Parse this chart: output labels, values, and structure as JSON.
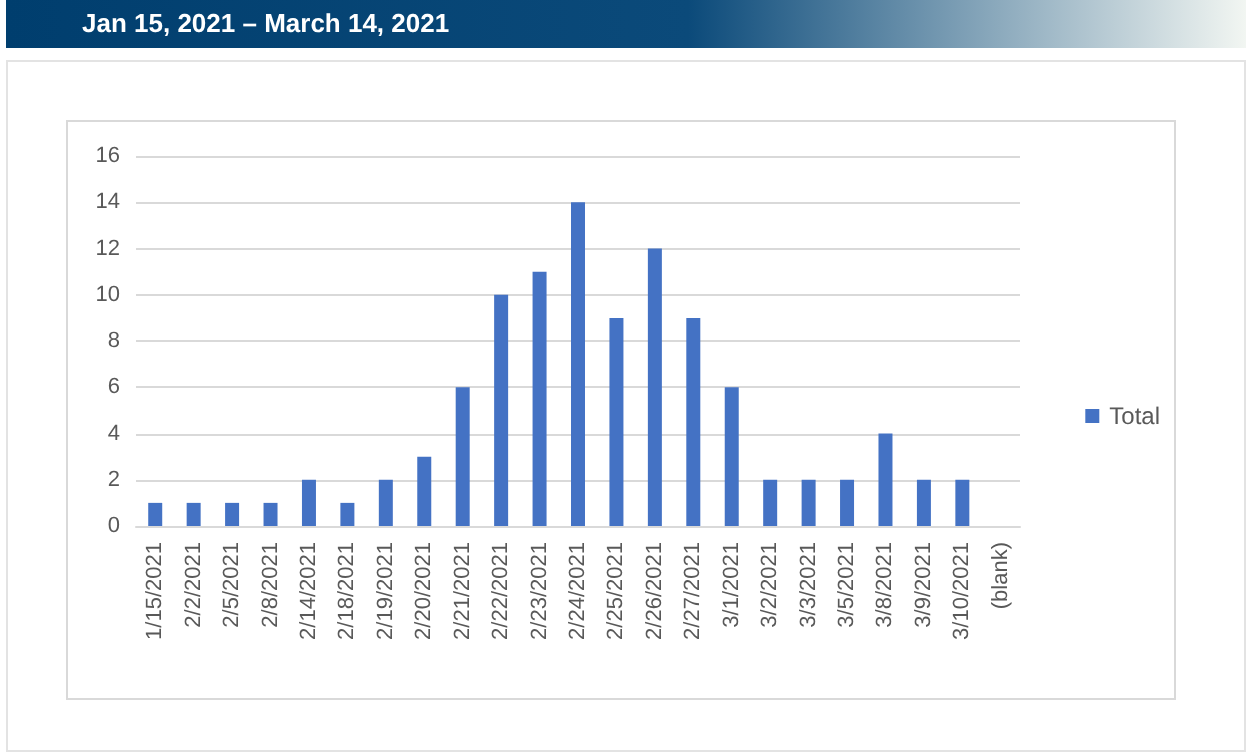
{
  "chart_data": {
    "type": "bar",
    "title": "Jan 15, 2021 – March 14, 2021",
    "categories": [
      "1/15/2021",
      "2/2/2021",
      "2/5/2021",
      "2/8/2021",
      "2/14/2021",
      "2/18/2021",
      "2/19/2021",
      "2/20/2021",
      "2/21/2021",
      "2/22/2021",
      "2/23/2021",
      "2/24/2021",
      "2/25/2021",
      "2/26/2021",
      "2/27/2021",
      "3/1/2021",
      "3/2/2021",
      "3/3/2021",
      "3/5/2021",
      "3/8/2021",
      "3/9/2021",
      "3/10/2021",
      "(blank)"
    ],
    "series": [
      {
        "name": "Total",
        "color": "#4472c4",
        "values": [
          1,
          1,
          1,
          1,
          2,
          1,
          2,
          3,
          6,
          10,
          11,
          14,
          9,
          12,
          9,
          6,
          2,
          2,
          2,
          4,
          2,
          2,
          null
        ]
      }
    ],
    "ylim": [
      0,
      16
    ],
    "yticks": [
      0,
      2,
      4,
      6,
      8,
      10,
      12,
      14,
      16
    ],
    "grid": "y",
    "legend": "right"
  }
}
